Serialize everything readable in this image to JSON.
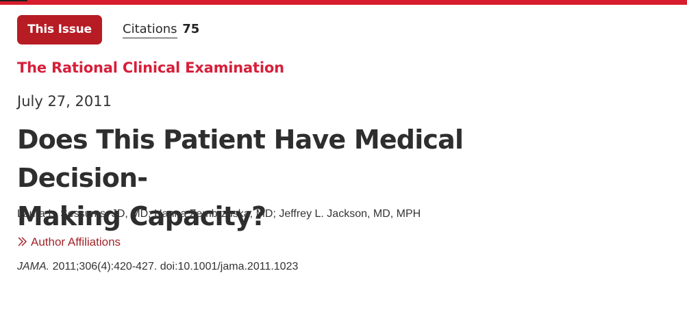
{
  "toolbar": {
    "issue_label": "This Issue",
    "citations_label": "Citations",
    "citations_count": "75"
  },
  "article": {
    "section": "The Rational Clinical Examination",
    "date": "July 27, 2011",
    "title_line1": "Does This Patient Have Medical Decision-",
    "title_line2": "Making Capacity?",
    "authors": "Laura L. Sessums, JD, MD; Hanna Zembrzuska, MD; Jeffrey L. Jackson, MD, MPH",
    "affiliations_label": "Author Affiliations",
    "journal": "JAMA.",
    "citation": " 2011;306(4):420-427. doi:10.1001/jama.2011.1023"
  },
  "icons": {
    "affiliations": "chevron-right-double-icon"
  },
  "colors": {
    "top_bar": "#d71d2d",
    "issue_button": "#b71c24",
    "section_label": "#d61f3a",
    "link": "#a3242c"
  }
}
